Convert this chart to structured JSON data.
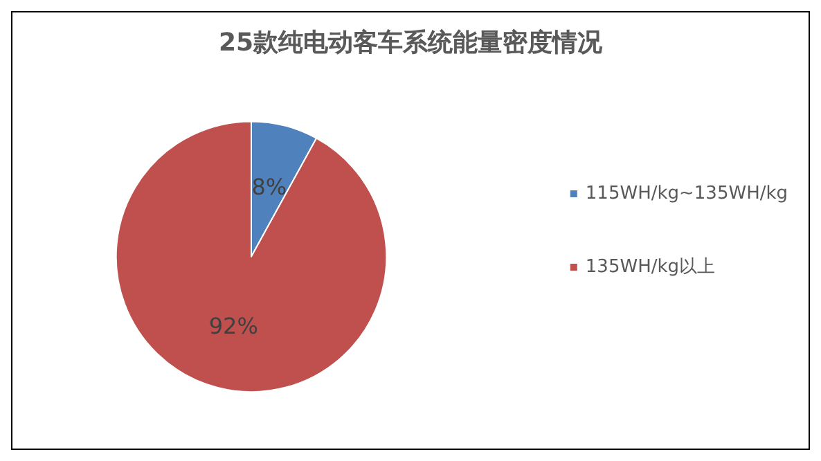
{
  "chart_data": {
    "type": "pie",
    "title": "25款纯电动客车系统能量密度情况",
    "categories": [
      "115WH/kg~135WH/kg",
      "135WH/kg以上"
    ],
    "values": [
      8,
      92
    ],
    "colors": [
      "#4f81bd",
      "#c0504d"
    ],
    "value_labels": [
      "8%",
      "92%"
    ],
    "legend": "right"
  }
}
